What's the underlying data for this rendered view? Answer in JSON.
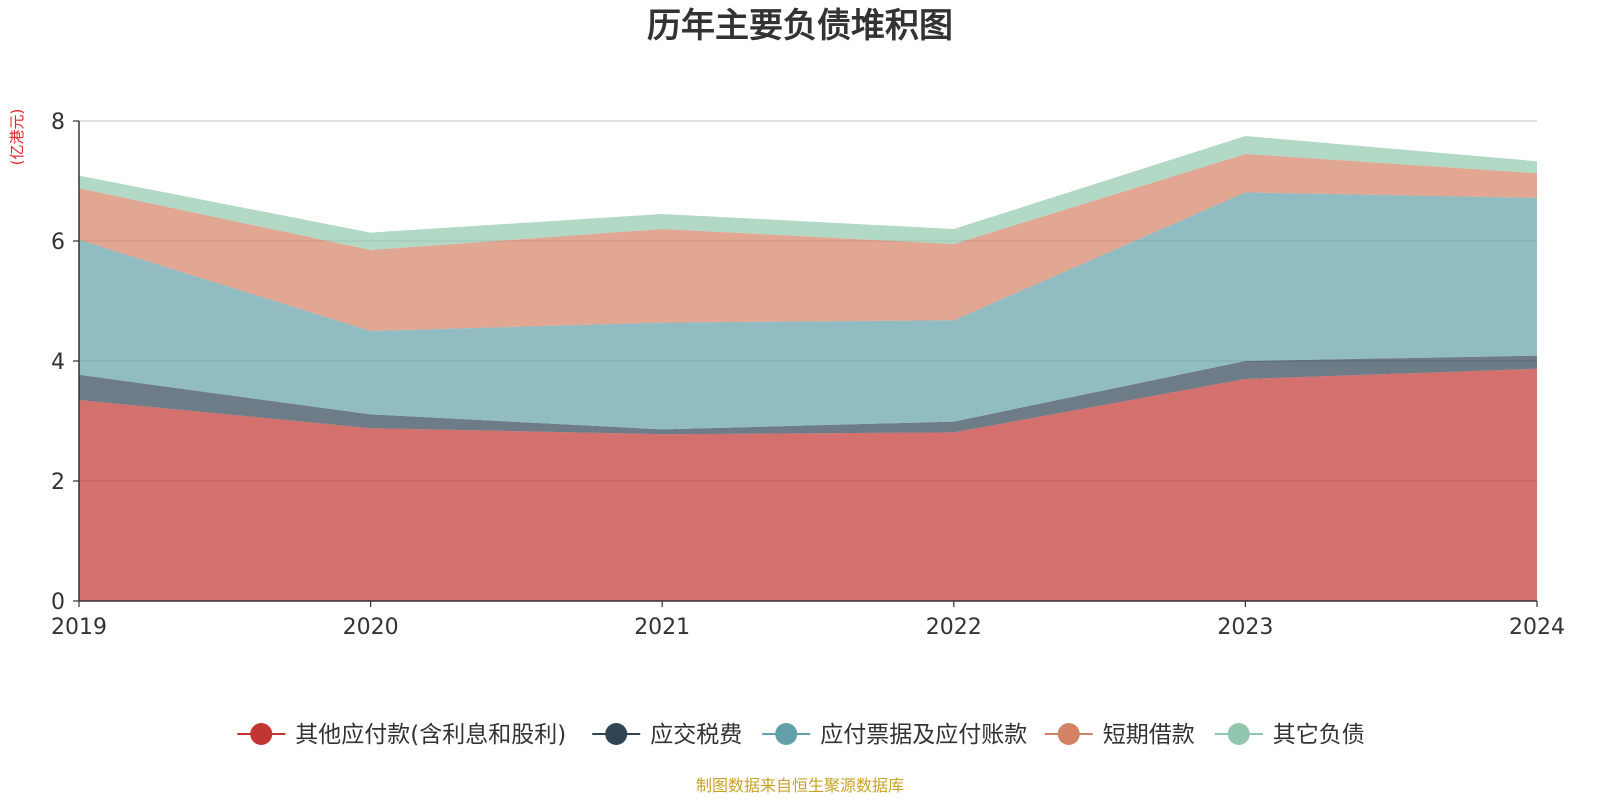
{
  "chart_data": {
    "type": "area",
    "stacked": true,
    "title": "历年主要负债堆积图",
    "unit_label": "(亿港元)",
    "source": "制图数据来自恒生聚源数据库",
    "x": [
      "2019",
      "2020",
      "2021",
      "2022",
      "2023",
      "2024"
    ],
    "yticks": [
      "0",
      "2",
      "4",
      "6",
      "8"
    ],
    "ylim": [
      0,
      8
    ],
    "grid": true,
    "legend_position": "bottom",
    "series": [
      {
        "name": "其他应付款(含利息和股利)",
        "color": "#c23531",
        "values": [
          3.35,
          2.88,
          2.78,
          2.81,
          3.7,
          3.87
        ]
      },
      {
        "name": "应交税费",
        "color": "#2f4554",
        "values": [
          0.42,
          0.23,
          0.08,
          0.18,
          0.3,
          0.22
        ]
      },
      {
        "name": "应付票据及应付账款",
        "color": "#61a0a8",
        "values": [
          2.25,
          1.39,
          1.78,
          1.69,
          2.81,
          2.63
        ]
      },
      {
        "name": "短期借款",
        "color": "#d48265",
        "values": [
          0.86,
          1.35,
          1.56,
          1.27,
          0.64,
          0.41
        ]
      },
      {
        "name": "其它负债",
        "color": "#91c7ae",
        "values": [
          0.21,
          0.29,
          0.25,
          0.25,
          0.3,
          0.2
        ]
      }
    ]
  }
}
